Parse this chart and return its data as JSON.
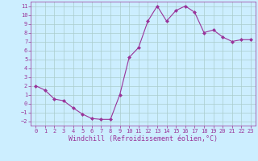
{
  "x": [
    0,
    1,
    2,
    3,
    4,
    5,
    6,
    7,
    8,
    9,
    10,
    11,
    12,
    13,
    14,
    15,
    16,
    17,
    18,
    19,
    20,
    21,
    22,
    23
  ],
  "y": [
    2,
    1.5,
    0.5,
    0.3,
    -0.5,
    -1.2,
    -1.7,
    -1.8,
    -1.8,
    1.0,
    5.2,
    6.3,
    9.3,
    11.0,
    9.3,
    10.5,
    11.0,
    10.3,
    8.0,
    8.3,
    7.5,
    7.0,
    7.2,
    7.2
  ],
  "line_color": "#993399",
  "marker": "D",
  "marker_size": 2.0,
  "bg_color": "#cceeff",
  "grid_color": "#aacccc",
  "xlabel": "Windchill (Refroidissement éolien,°C)",
  "xlabel_color": "#993399",
  "tick_color": "#993399",
  "xlim": [
    -0.5,
    23.5
  ],
  "ylim": [
    -2.5,
    11.5
  ],
  "yticks": [
    -2,
    -1,
    0,
    1,
    2,
    3,
    4,
    5,
    6,
    7,
    8,
    9,
    10,
    11
  ],
  "xticks": [
    0,
    1,
    2,
    3,
    4,
    5,
    6,
    7,
    8,
    9,
    10,
    11,
    12,
    13,
    14,
    15,
    16,
    17,
    18,
    19,
    20,
    21,
    22,
    23
  ],
  "tick_fontsize": 5.0,
  "xlabel_fontsize": 6.0,
  "linewidth": 0.8
}
